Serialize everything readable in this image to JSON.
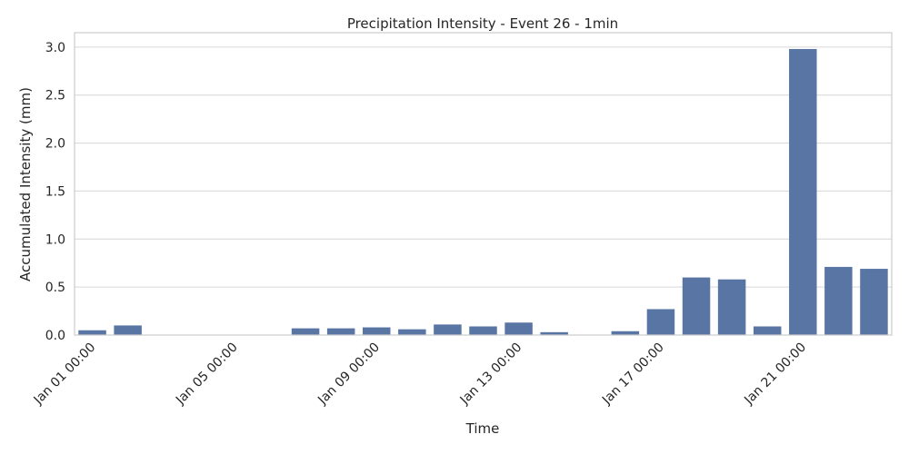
{
  "chart_data": {
    "type": "bar",
    "title": "Precipitation Intensity - Event 26 - 1min",
    "xlabel": "Time",
    "ylabel": "Accumulated Intensity (mm)",
    "ylim": [
      0,
      3.15
    ],
    "yticks": [
      "0.0",
      "0.5",
      "1.0",
      "1.5",
      "2.0",
      "2.5",
      "3.0"
    ],
    "grid": true,
    "bar_color": "#5875a4",
    "categories": [
      "Jan 01 00:00",
      "Jan 02 00:00",
      "Jan 03 00:00",
      "Jan 04 00:00",
      "Jan 05 00:00",
      "Jan 06 00:00",
      "Jan 07 00:00",
      "Jan 08 00:00",
      "Jan 09 00:00",
      "Jan 10 00:00",
      "Jan 11 00:00",
      "Jan 12 00:00",
      "Jan 13 00:00",
      "Jan 14 00:00",
      "Jan 15 00:00",
      "Jan 16 00:00",
      "Jan 17 00:00",
      "Jan 18 00:00",
      "Jan 19 00:00",
      "Jan 20 00:00",
      "Jan 21 00:00",
      "Jan 22 00:00",
      "Jan 23 00:00"
    ],
    "values": [
      0.05,
      0.1,
      0.0,
      0.0,
      0.0,
      0.0,
      0.07,
      0.07,
      0.08,
      0.06,
      0.11,
      0.09,
      0.13,
      0.03,
      0.0,
      0.04,
      0.27,
      0.6,
      0.58,
      0.09,
      2.98,
      0.71,
      0.69
    ],
    "xtick_labels": [
      "Jan 01 00:00",
      "Jan 05 00:00",
      "Jan 09 00:00",
      "Jan 13 00:00",
      "Jan 17 00:00",
      "Jan 21 00:00"
    ]
  }
}
